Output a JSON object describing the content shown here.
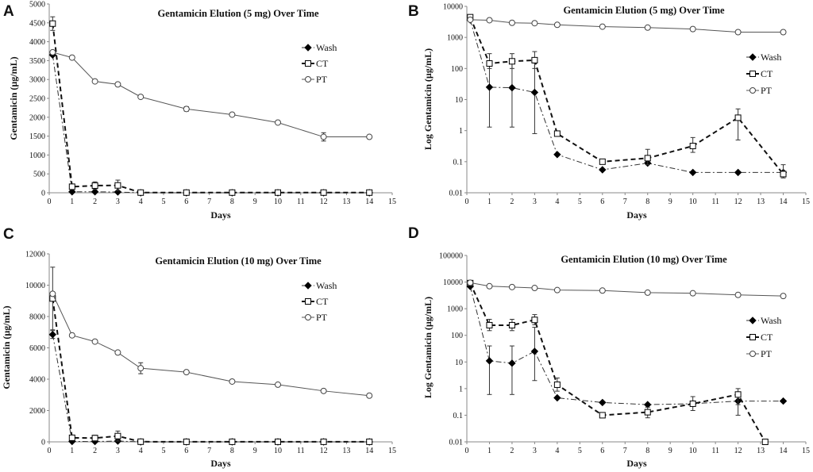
{
  "figure": {
    "panels": [
      {
        "letter": "A"
      },
      {
        "letter": "B"
      },
      {
        "letter": "C"
      },
      {
        "letter": "D"
      }
    ]
  },
  "chart_data": [
    {
      "panel": "A",
      "type": "line",
      "title": "Gentamicin Elution (5 mg) Over Time",
      "xlabel": "Days",
      "ylabel": "Gentamicin (µg/mL)",
      "scale": "linear",
      "xlim": [
        0,
        15
      ],
      "ylim": [
        0,
        5000
      ],
      "xticks": [
        0,
        1,
        2,
        3,
        4,
        5,
        6,
        7,
        8,
        9,
        10,
        11,
        12,
        13,
        14,
        15
      ],
      "yticks": [
        0,
        500,
        1000,
        1500,
        2000,
        2500,
        3000,
        3500,
        4000,
        4500,
        5000
      ],
      "legend_position": "right",
      "series": [
        {
          "name": "Wash",
          "marker": "filled-diamond",
          "line": "dash-dot",
          "x": [
            0.15,
            1,
            2,
            3,
            4,
            6,
            8,
            10,
            12,
            14
          ],
          "values": [
            3650,
            25,
            25,
            20,
            0,
            0,
            0,
            0,
            0,
            0
          ],
          "error": [
            30,
            0,
            0,
            0,
            0,
            0,
            0,
            0,
            0,
            0
          ]
        },
        {
          "name": "CT",
          "marker": "open-square",
          "line": "dashed",
          "x": [
            0.15,
            1,
            2,
            3,
            4,
            6,
            8,
            10,
            12,
            14
          ],
          "values": [
            4480,
            160,
            190,
            195,
            5,
            5,
            5,
            5,
            5,
            5
          ],
          "error": [
            180,
            40,
            100,
            140,
            0,
            0,
            0,
            0,
            0,
            0
          ]
        },
        {
          "name": "PT",
          "marker": "open-circle",
          "line": "solid",
          "x": [
            0.15,
            1,
            2,
            3,
            4,
            6,
            8,
            10,
            12,
            14
          ],
          "values": [
            3720,
            3580,
            2950,
            2870,
            2540,
            2220,
            2070,
            1860,
            1480,
            1480
          ],
          "error": [
            0,
            0,
            0,
            0,
            0,
            60,
            0,
            0,
            110,
            0
          ]
        }
      ]
    },
    {
      "panel": "B",
      "type": "line",
      "title": "Gentamicin Elution (5 mg) Over Time",
      "xlabel": "Days",
      "ylabel": "Log Gentamicin (µg/mL)",
      "scale": "log",
      "xlim": [
        0,
        15
      ],
      "ylim": [
        0.01,
        10000
      ],
      "xticks": [
        0,
        1,
        2,
        3,
        4,
        5,
        6,
        7,
        8,
        9,
        10,
        11,
        12,
        13,
        14,
        15
      ],
      "yticks": [
        "0.01",
        "0.1",
        "1",
        "10",
        "100",
        "1000",
        "10000"
      ],
      "legend_position": "right",
      "series": [
        {
          "name": "Wash",
          "marker": "filled-diamond",
          "line": "dash-dot",
          "x": [
            0.15,
            1,
            2,
            3,
            4,
            6,
            8,
            10,
            12,
            14
          ],
          "values": [
            3650,
            25,
            24,
            17,
            0.17,
            0.055,
            0.09,
            0.045,
            0.045,
            0.045
          ],
          "error_low": [
            3650,
            1.3,
            1.3,
            0.8,
            0.17,
            0.055,
            0.09,
            0.045,
            0.045,
            0.045
          ],
          "error_high": [
            3650,
            150,
            150,
            150,
            0.17,
            0.055,
            0.09,
            0.045,
            0.045,
            0.045
          ]
        },
        {
          "name": "CT",
          "marker": "open-square",
          "line": "dashed",
          "x": [
            0.15,
            1,
            2,
            3,
            4,
            6,
            8,
            10,
            12,
            14
          ],
          "values": [
            4480,
            145,
            170,
            185,
            0.8,
            0.1,
            0.13,
            0.32,
            2.6,
            0.04
          ],
          "error_low": [
            4480,
            100,
            100,
            100,
            0.8,
            0.1,
            0.08,
            0.2,
            0.5,
            0.03
          ],
          "error_high": [
            4480,
            300,
            300,
            350,
            0.8,
            0.1,
            0.25,
            0.6,
            5,
            0.08
          ]
        },
        {
          "name": "PT",
          "marker": "open-circle",
          "line": "solid",
          "x": [
            0.15,
            1,
            2,
            3,
            4,
            6,
            8,
            10,
            12,
            14
          ],
          "values": [
            3720,
            3580,
            2950,
            2870,
            2540,
            2220,
            2070,
            1860,
            1480,
            1480
          ]
        }
      ]
    },
    {
      "panel": "C",
      "type": "line",
      "title": "Gentamicin Elution (10 mg) Over Time",
      "xlabel": "Days",
      "ylabel": "Gentamicin (µg/mL)",
      "scale": "linear",
      "xlim": [
        0,
        15
      ],
      "ylim": [
        0,
        12000
      ],
      "xticks": [
        0,
        1,
        2,
        3,
        4,
        5,
        6,
        7,
        8,
        9,
        10,
        11,
        12,
        13,
        14,
        15
      ],
      "yticks": [
        0,
        2000,
        4000,
        6000,
        8000,
        10000,
        12000
      ],
      "legend_position": "right",
      "series": [
        {
          "name": "Wash",
          "marker": "filled-diamond",
          "line": "dash-dot",
          "x": [
            0.15,
            1,
            2,
            3,
            4,
            6,
            8,
            10,
            12,
            14
          ],
          "values": [
            6850,
            25,
            20,
            50,
            0,
            0,
            0,
            0,
            0,
            0
          ],
          "error": [
            250,
            0,
            0,
            0,
            0,
            0,
            0,
            0,
            0,
            0
          ]
        },
        {
          "name": "CT",
          "marker": "open-square",
          "line": "dashed",
          "x": [
            0.15,
            1,
            2,
            3,
            4,
            6,
            8,
            10,
            12,
            14
          ],
          "values": [
            9150,
            260,
            240,
            370,
            10,
            5,
            5,
            5,
            5,
            5
          ],
          "error": [
            2000,
            150,
            180,
            320,
            0,
            0,
            0,
            0,
            0,
            0
          ]
        },
        {
          "name": "PT",
          "marker": "open-circle",
          "line": "solid",
          "x": [
            0.15,
            1,
            2,
            3,
            4,
            6,
            8,
            10,
            12,
            14
          ],
          "values": [
            9450,
            6800,
            6400,
            5700,
            4700,
            4450,
            3850,
            3650,
            3250,
            2950
          ],
          "error": [
            0,
            0,
            0,
            0,
            350,
            0,
            0,
            0,
            0,
            0
          ]
        }
      ]
    },
    {
      "panel": "D",
      "type": "line",
      "title": "Gentamicin Elution (10 mg) Over Time",
      "xlabel": "Days",
      "ylabel": "Log Gentamicin (µg/mL)",
      "scale": "log",
      "xlim": [
        0,
        15
      ],
      "ylim": [
        0.01,
        100000
      ],
      "xticks": [
        0,
        1,
        2,
        3,
        4,
        5,
        6,
        7,
        8,
        9,
        10,
        11,
        12,
        13,
        14,
        15
      ],
      "yticks": [
        "0.01",
        "0.1",
        "1",
        "10",
        "100",
        "1000",
        "10000",
        "100000"
      ],
      "legend_position": "right",
      "series": [
        {
          "name": "Wash",
          "marker": "filled-diamond",
          "line": "dash-dot",
          "x": [
            0.15,
            1,
            2,
            3,
            4,
            6,
            8,
            10,
            12,
            14
          ],
          "values": [
            6850,
            11,
            9,
            25,
            0.45,
            0.3,
            0.25,
            0.27,
            0.34,
            0.34
          ],
          "error_low": [
            6850,
            0.6,
            0.6,
            2,
            0.45,
            0.3,
            0.25,
            0.27,
            0.1,
            0.34
          ],
          "error_high": [
            6850,
            40,
            40,
            200,
            0.45,
            0.3,
            0.25,
            0.27,
            0.7,
            0.34
          ]
        },
        {
          "name": "CT",
          "marker": "open-square",
          "line": "dashed",
          "x": [
            0.15,
            1,
            2,
            3,
            4,
            6,
            8,
            10,
            12,
            13.2
          ],
          "values": [
            9150,
            240,
            240,
            380,
            1.4,
            0.1,
            0.13,
            0.27,
            0.6,
            0.01
          ],
          "error_low": [
            9150,
            150,
            150,
            250,
            0.8,
            0.1,
            0.08,
            0.15,
            0.25,
            0.01
          ],
          "error_high": [
            9150,
            400,
            400,
            600,
            2.5,
            0.1,
            0.2,
            0.5,
            1,
            0.01
          ]
        },
        {
          "name": "PT",
          "marker": "open-circle",
          "line": "solid",
          "x": [
            0.15,
            1,
            2,
            3,
            4,
            6,
            8,
            10,
            12,
            14
          ],
          "values": [
            9450,
            7000,
            6500,
            6000,
            5000,
            4800,
            4000,
            3800,
            3300,
            3000
          ]
        }
      ]
    }
  ]
}
